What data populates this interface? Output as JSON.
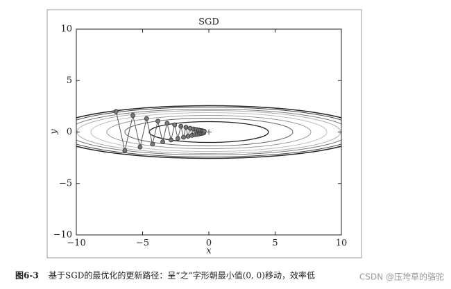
{
  "chart_data": {
    "type": "line",
    "title": "SGD",
    "xlabel": "x",
    "ylabel": "y",
    "x": [
      -7,
      -6.34,
      -5.73,
      -5.19,
      -4.7,
      -4.25,
      -3.85,
      -3.48,
      -3.15,
      -2.85,
      -2.58,
      -2.34,
      -2.11,
      -1.91,
      -1.73,
      -1.57,
      -1.42,
      -1.28,
      -1.16,
      -1.05,
      -0.95,
      -0.86,
      -0.78,
      -0.71,
      -0.64,
      -0.58,
      -0.52,
      -0.47,
      -0.43,
      -0.39,
      -0.35
    ],
    "values": [
      2,
      -1.8,
      1.62,
      -1.46,
      1.31,
      -1.18,
      1.06,
      -0.96,
      0.86,
      -0.77,
      0.7,
      -0.63,
      0.56,
      -0.51,
      0.46,
      -0.41,
      0.37,
      -0.33,
      0.3,
      -0.27,
      0.24,
      -0.22,
      0.2,
      -0.18,
      0.16,
      -0.14,
      0.13,
      -0.12,
      0.1,
      -0.09,
      0.08
    ],
    "color": "#555555",
    "marker_color": "#777777",
    "xlim": [
      -10,
      10
    ],
    "ylim": [
      -10,
      10
    ],
    "xticks": [
      {
        "value": -10,
        "label": "−10"
      },
      {
        "value": -5,
        "label": "−5"
      },
      0,
      5,
      10
    ],
    "yticks": [
      {
        "value": -10,
        "label": "−10"
      },
      {
        "value": -5,
        "label": "−5"
      },
      0,
      5,
      10
    ]
  },
  "figure_label": "图6-3",
  "caption": "基于SGD的最优化的更新路径：呈“之”字形朝最小值(0, 0)移动，效率低",
  "watermark": "CSDN @压垮草的骆驼"
}
